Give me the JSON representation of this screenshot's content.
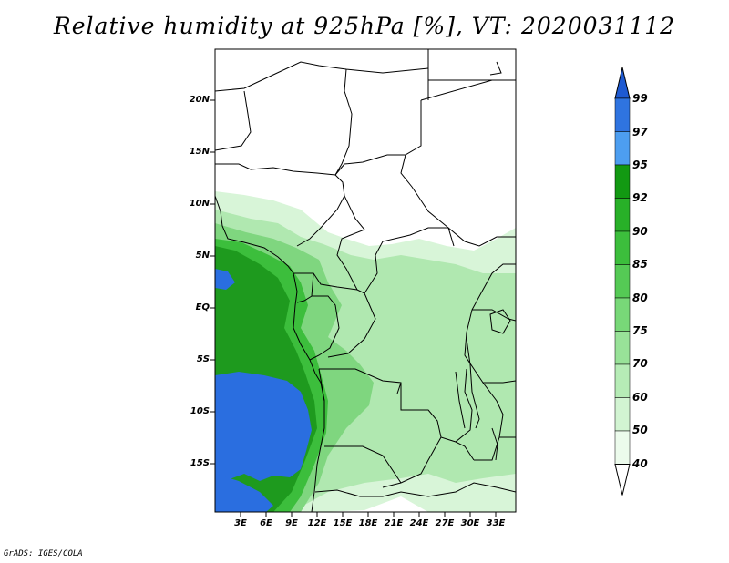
{
  "title": "Relative humidity at 925hPa [%], VT: 2020031112",
  "credit": "GrADS: IGES/COLA",
  "y_axis_labels": [
    "20N",
    "15N",
    "10N",
    "5N",
    "EQ",
    "5S",
    "10S",
    "15S"
  ],
  "x_axis_labels": [
    "3E",
    "6E",
    "9E",
    "12E",
    "15E",
    "18E",
    "21E",
    "24E",
    "27E",
    "30E",
    "33E"
  ],
  "colorbar": {
    "labels": [
      "99",
      "97",
      "95",
      "92",
      "90",
      "85",
      "80",
      "75",
      "70",
      "60",
      "50",
      "40"
    ],
    "colors": [
      "#1e5ad2",
      "#2f74e0",
      "#4d9ef0",
      "#129912",
      "#28b028",
      "#3cbe3c",
      "#55ca55",
      "#78d878",
      "#98e298",
      "#b6ecb6",
      "#d2f4d2",
      "#ecfbec"
    ],
    "low_color": "#ffffff"
  },
  "map_colors": {
    "very_humid": "#2a6ee0",
    "humid_core": "#1e9a1e",
    "humid": "#3cbe3c",
    "moist": "#7fd67f",
    "mild": "#b0e8b0",
    "light": "#d8f5d8",
    "border": "#000000"
  }
}
